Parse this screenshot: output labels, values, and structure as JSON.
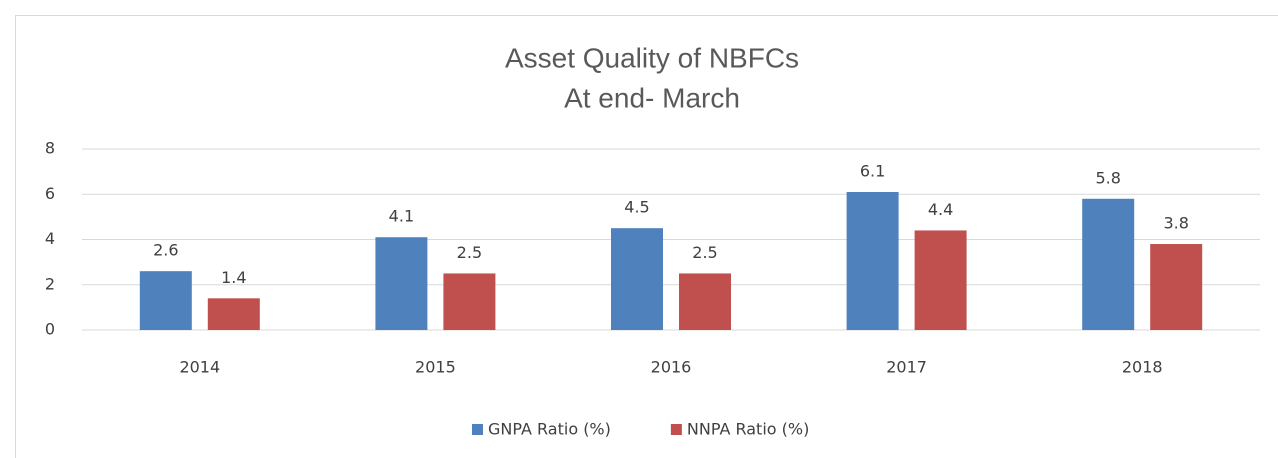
{
  "chart_data": {
    "type": "bar",
    "title": "Asset Quality of NBFCs",
    "subtitle": "At end- March",
    "categories": [
      "2014",
      "2015",
      "2016",
      "2017",
      "2018"
    ],
    "series": [
      {
        "name": "GNPA Ratio (%)",
        "color": "#4f81bd",
        "values": [
          2.6,
          4.1,
          4.5,
          6.1,
          5.8
        ]
      },
      {
        "name": "NNPA Ratio (%)",
        "color": "#c0504d",
        "values": [
          1.4,
          2.5,
          2.5,
          4.4,
          3.8
        ]
      }
    ],
    "ylim": [
      0,
      8
    ],
    "yticks": [
      0,
      2,
      4,
      6,
      8
    ],
    "grid": true,
    "legend": "bottom"
  }
}
